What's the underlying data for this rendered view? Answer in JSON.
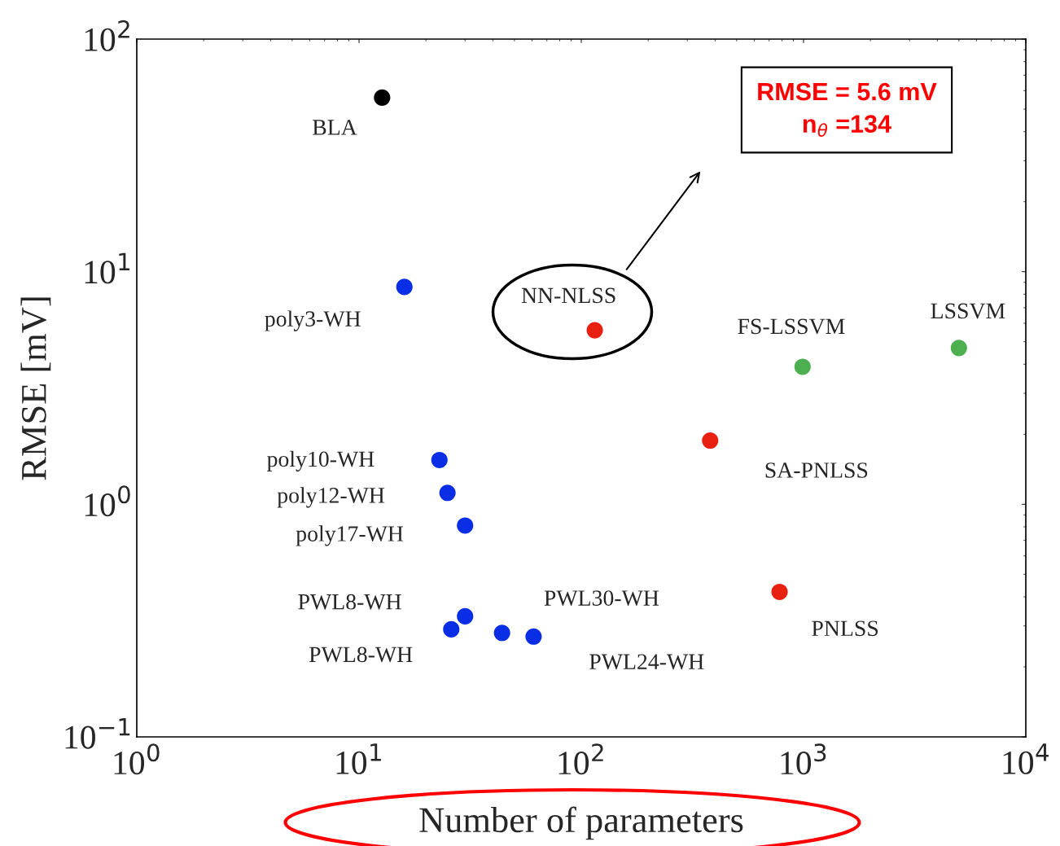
{
  "chart_data": {
    "type": "scatter",
    "xlabel": "Number of parameters",
    "ylabel": "RMSE [mV]",
    "log": "xy",
    "grid": false,
    "marker": "circle",
    "xlim": [
      1,
      10000
    ],
    "xticks": [
      {
        "value": 1,
        "label": "10$^{0}$"
      },
      {
        "value": 10,
        "label": "10$^{1}$"
      },
      {
        "value": 100,
        "label": "10$^{2}$"
      },
      {
        "value": 1000,
        "label": "10$^{3}$"
      },
      {
        "value": 10000,
        "label": "10$^{4}$"
      }
    ],
    "ylim": [
      0.1,
      100
    ],
    "yticks": [
      {
        "value": 0.1,
        "label": "10$^{−1}$"
      },
      {
        "value": 1,
        "label": "10$^{0}$"
      },
      {
        "value": 10,
        "label": "10$^{1}$"
      },
      {
        "value": 100,
        "label": "10$^{2}$"
      }
    ],
    "series": [
      {
        "color": "#000000",
        "x": [
          12.7
        ],
        "values": [
          56
        ]
      },
      {
        "color": "#0a2ee6",
        "x": [
          16,
          23,
          25,
          30,
          30,
          26,
          44,
          61
        ],
        "values": [
          8.6,
          1.55,
          1.12,
          0.81,
          0.33,
          0.29,
          0.28,
          0.27
        ]
      },
      {
        "color": "#e8200f",
        "x": [
          115,
          380,
          780
        ],
        "values": [
          5.6,
          1.88,
          0.42
        ]
      },
      {
        "color": "#4caf50",
        "x": [
          990,
          5000
        ],
        "values": [
          3.9,
          4.7
        ]
      }
    ],
    "annotations": [
      {
        "text": "BLA",
        "x": 12.7,
        "y": 56
      },
      {
        "text": "poly3-WH",
        "x": 16,
        "y": 8.6
      },
      {
        "text": "poly10-WH",
        "x": 23,
        "y": 1.55
      },
      {
        "text": "poly12-WH",
        "x": 25,
        "y": 1.12
      },
      {
        "text": "poly17-WH",
        "x": 30,
        "y": 0.81
      },
      {
        "text": "PWL8-WH",
        "x": 30,
        "y": 0.33
      },
      {
        "text": "PWL8-WH",
        "x": 26,
        "y": 0.29
      },
      {
        "text": "PWL30-WH",
        "x": 44,
        "y": 0.28
      },
      {
        "text": "PWL24-WH",
        "x": 61,
        "y": 0.27
      },
      {
        "text": "NN-NLSS",
        "x": 115,
        "y": 5.6
      },
      {
        "text": "SA-PNLSS",
        "x": 380,
        "y": 1.88
      },
      {
        "text": "PNLSS",
        "x": 780,
        "y": 0.42
      },
      {
        "text": "FS-LSSVM",
        "x": 990,
        "y": 3.9
      },
      {
        "text": "LSSVM",
        "x": 5000,
        "y": 4.7
      },
      "RMSE = 5.6 mV\nn$_{θ}$ =134"
    ]
  }
}
